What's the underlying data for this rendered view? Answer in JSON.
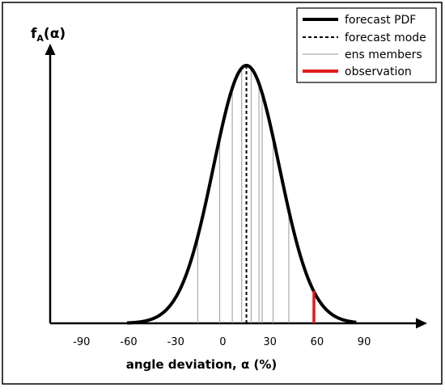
{
  "chart_data": {
    "type": "line",
    "title": "",
    "xlabel": "angle deviation, α (%)",
    "ylabel": {
      "main": "f",
      "sub": "A",
      "rest": "(α)"
    },
    "xlim": [
      -110,
      125
    ],
    "x_ticks": [
      -90,
      -60,
      -30,
      0,
      30,
      60,
      90
    ],
    "grid": false,
    "legend_position": "top-right",
    "series": [
      {
        "name": "forecast PDF",
        "kind": "pdf",
        "mean": 15,
        "sd": 21,
        "x_range": [
          -61,
          85
        ],
        "color": "#000000"
      },
      {
        "name": "forecast mode",
        "kind": "vline",
        "x": 15,
        "color": "#000000"
      },
      {
        "name": "ens members",
        "kind": "vlines",
        "x": [
          -16,
          -2,
          6,
          12,
          18,
          23,
          25,
          32,
          42
        ],
        "color": "#9a9a9a"
      },
      {
        "name": "observation",
        "kind": "vline",
        "x": 58,
        "color": "#e21a1a"
      }
    ]
  }
}
